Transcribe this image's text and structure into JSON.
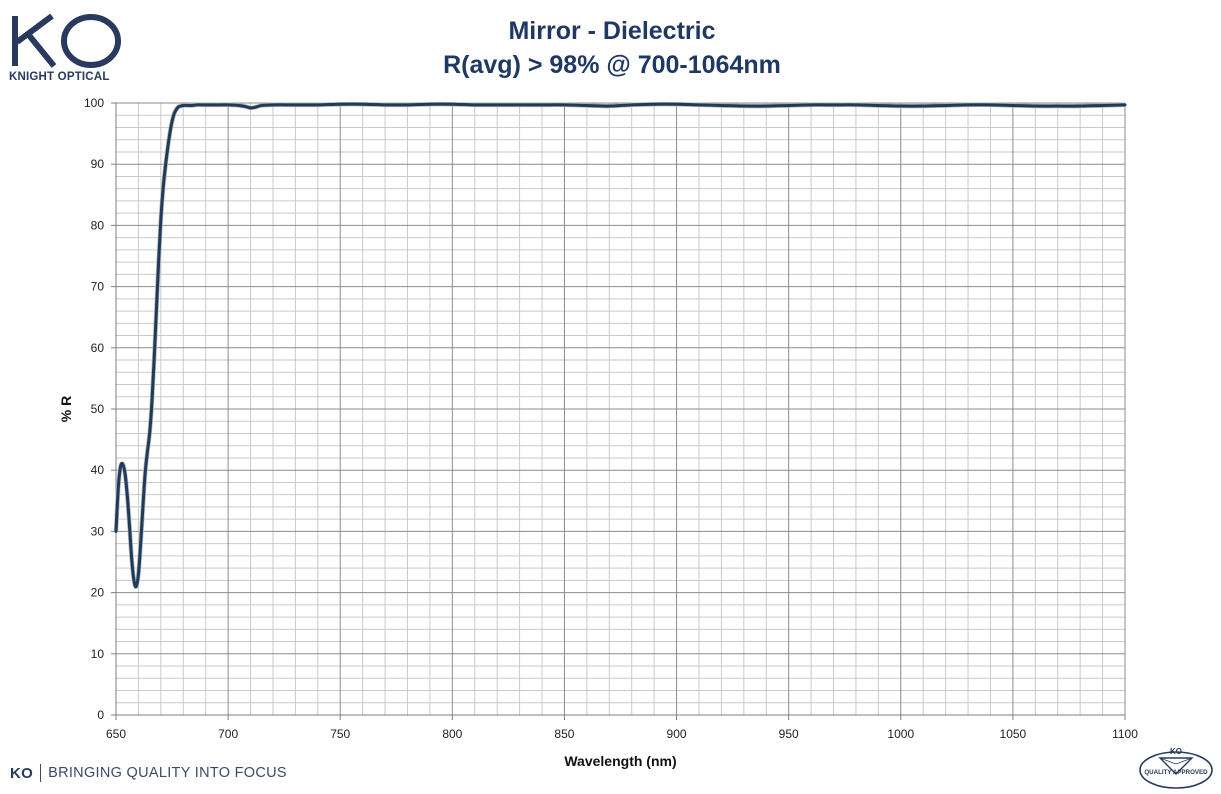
{
  "brand": {
    "logo_text": "KO",
    "logo_subtitle": "KNIGHT OPTICAL",
    "footer_ko": "KO",
    "footer_tagline": "BRINGING QUALITY INTO FOCUS",
    "badge_top": "KO",
    "badge_text": "QUALITY APPROVED",
    "primary_color": "#2a3a5e"
  },
  "chart_data": {
    "type": "line",
    "title": "Mirror - Dielectric",
    "subtitle": "R(avg) > 98% @ 700-1064nm",
    "xlabel": "Wavelength (nm)",
    "ylabel": "% R",
    "xlim": [
      650,
      1100
    ],
    "ylim": [
      0,
      100
    ],
    "x_major_ticks": [
      650,
      700,
      750,
      800,
      850,
      900,
      950,
      1000,
      1050,
      1100
    ],
    "x_minor_step": 10,
    "y_major_ticks": [
      0,
      10,
      20,
      30,
      40,
      50,
      60,
      70,
      80,
      90,
      100
    ],
    "y_minor_step": 2,
    "grid": true,
    "legend": "none",
    "line_color": "#1f3b5c",
    "series": [
      {
        "x": [
          650,
          651,
          652,
          653,
          654,
          655,
          656,
          657,
          658,
          659,
          660,
          661,
          662,
          663,
          664,
          665,
          666,
          667,
          668,
          669,
          670,
          671,
          672,
          673,
          674,
          675,
          676,
          677,
          678,
          679,
          680,
          682,
          684,
          686,
          690,
          695,
          700,
          705,
          708,
          710,
          712,
          715,
          720,
          730,
          740,
          750,
          760,
          770,
          780,
          790,
          800,
          810,
          820,
          830,
          840,
          850,
          860,
          870,
          880,
          890,
          900,
          910,
          920,
          930,
          940,
          950,
          960,
          970,
          980,
          990,
          1000,
          1010,
          1020,
          1030,
          1040,
          1050,
          1060,
          1070,
          1080,
          1090,
          1100
        ],
        "values": [
          30,
          37,
          40.5,
          41,
          39.5,
          36,
          31,
          25.5,
          22,
          21,
          23,
          28,
          34,
          39.5,
          43,
          46,
          51,
          58,
          66,
          74,
          81,
          86,
          89.5,
          92.5,
          95,
          97,
          98.3,
          99,
          99.4,
          99.5,
          99.6,
          99.6,
          99.6,
          99.7,
          99.7,
          99.7,
          99.7,
          99.6,
          99.4,
          99.2,
          99.3,
          99.6,
          99.7,
          99.7,
          99.7,
          99.8,
          99.8,
          99.7,
          99.7,
          99.8,
          99.8,
          99.7,
          99.7,
          99.7,
          99.7,
          99.7,
          99.6,
          99.5,
          99.7,
          99.8,
          99.8,
          99.7,
          99.6,
          99.5,
          99.5,
          99.6,
          99.7,
          99.7,
          99.7,
          99.6,
          99.5,
          99.5,
          99.6,
          99.7,
          99.7,
          99.6,
          99.5,
          99.5,
          99.5,
          99.6,
          99.7
        ]
      }
    ]
  }
}
